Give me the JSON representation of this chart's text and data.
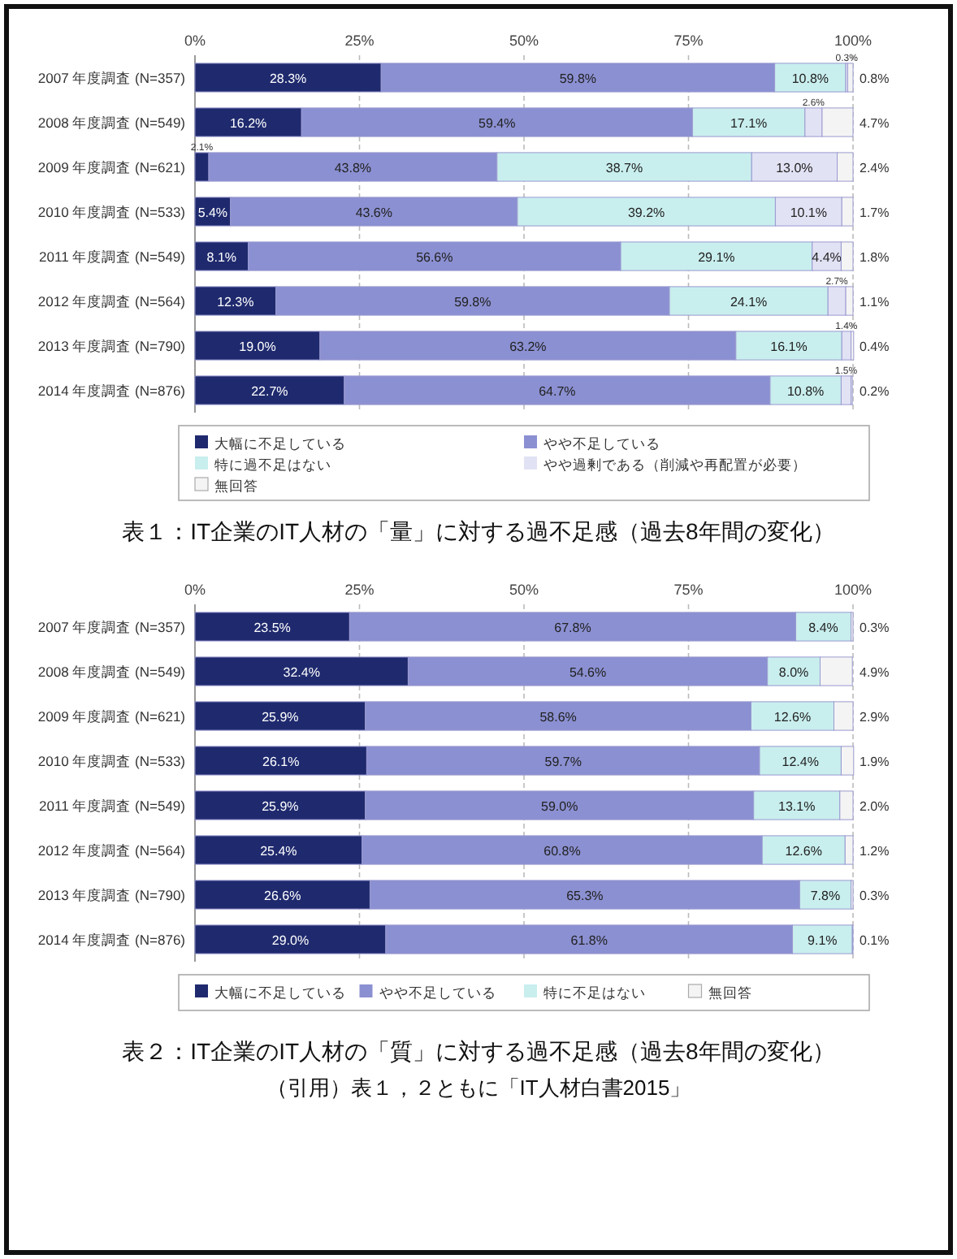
{
  "chart_data": [
    {
      "type": "bar",
      "orientation": "horizontal",
      "stacked": true,
      "title": "表１：IT企業のIT人材の「量」に対する過不足感（過去8年間の変化）",
      "categories": [
        "2007 年度調査 (N=357)",
        "2008 年度調査 (N=549)",
        "2009 年度調査 (N=621)",
        "2010 年度調査 (N=533)",
        "2011 年度調査 (N=549)",
        "2012 年度調査 (N=564)",
        "2013 年度調査 (N=790)",
        "2014 年度調査 (N=876)"
      ],
      "series": [
        {
          "name": "大幅に不足している",
          "color": "#1f2a6e",
          "values": [
            28.3,
            16.2,
            2.1,
            5.4,
            8.1,
            12.3,
            19.0,
            22.7
          ],
          "value_labels": [
            "28.3%",
            "16.2%",
            "2.1%",
            "5.4%",
            "8.1%",
            "12.3%",
            "19.0%",
            "22.7%"
          ]
        },
        {
          "name": "やや不足している",
          "color": "#8b90d2",
          "values": [
            59.8,
            59.4,
            43.8,
            43.6,
            56.6,
            59.8,
            63.2,
            64.7
          ],
          "value_labels": [
            "59.8%",
            "59.4%",
            "43.8%",
            "43.6%",
            "56.6%",
            "59.8%",
            "63.2%",
            "64.7%"
          ]
        },
        {
          "name": "特に過不足はない",
          "color": "#c9eeee",
          "values": [
            10.8,
            17.1,
            38.7,
            39.2,
            29.1,
            24.1,
            16.1,
            10.8
          ],
          "value_labels": [
            "10.8%",
            "17.1%",
            "38.7%",
            "39.2%",
            "29.1%",
            "24.1%",
            "16.1%",
            "10.8%"
          ]
        },
        {
          "name": "やや過剰である（削減や再配置が必要）",
          "color": "#e2e2f5",
          "values": [
            0.3,
            2.6,
            13.0,
            10.1,
            4.4,
            2.7,
            1.4,
            1.5
          ],
          "value_labels": [
            "0.3%",
            "2.6%",
            "13.0%",
            "10.1%",
            "4.4%",
            "2.7%",
            "1.4%",
            "1.5%"
          ]
        },
        {
          "name": "無回答",
          "color": "#f4f4f4",
          "values": [
            0.8,
            4.7,
            2.4,
            1.7,
            1.8,
            1.1,
            0.4,
            0.2
          ],
          "value_labels": [
            "0.8%",
            "4.7%",
            "2.4%",
            "1.7%",
            "1.8%",
            "1.1%",
            "0.4%",
            "0.2%"
          ]
        }
      ],
      "xlim": [
        0,
        100
      ],
      "xticks": [
        {
          "value": 0,
          "label": "0%"
        },
        {
          "value": 25,
          "label": "25%"
        },
        {
          "value": 50,
          "label": "50%"
        },
        {
          "value": 75,
          "label": "75%"
        },
        {
          "value": 100,
          "label": "100%"
        }
      ],
      "grid": "x",
      "legend": "bottom"
    },
    {
      "type": "bar",
      "orientation": "horizontal",
      "stacked": true,
      "title": "表２：IT企業のIT人材の「質」に対する過不足感（過去8年間の変化）",
      "categories": [
        "2007 年度調査 (N=357)",
        "2008 年度調査 (N=549)",
        "2009 年度調査 (N=621)",
        "2010 年度調査 (N=533)",
        "2011 年度調査 (N=549)",
        "2012 年度調査 (N=564)",
        "2013 年度調査 (N=790)",
        "2014 年度調査 (N=876)"
      ],
      "series": [
        {
          "name": "大幅に不足している",
          "color": "#1f2a6e",
          "values": [
            23.5,
            32.4,
            25.9,
            26.1,
            25.9,
            25.4,
            26.6,
            29.0
          ],
          "value_labels": [
            "23.5%",
            "32.4%",
            "25.9%",
            "26.1%",
            "25.9%",
            "25.4%",
            "26.6%",
            "29.0%"
          ]
        },
        {
          "name": "やや不足している",
          "color": "#8b90d2",
          "values": [
            67.8,
            54.6,
            58.6,
            59.7,
            59.0,
            60.8,
            65.3,
            61.8
          ],
          "value_labels": [
            "67.8%",
            "54.6%",
            "58.6%",
            "59.7%",
            "59.0%",
            "60.8%",
            "65.3%",
            "61.8%"
          ]
        },
        {
          "name": "特に不足はない",
          "color": "#c9eeee",
          "values": [
            8.4,
            8.0,
            12.6,
            12.4,
            13.1,
            12.6,
            7.8,
            9.1
          ],
          "value_labels": [
            "8.4%",
            "8.0%",
            "12.6%",
            "12.4%",
            "13.1%",
            "12.6%",
            "7.8%",
            "9.1%"
          ]
        },
        {
          "name": "無回答",
          "color": "#f4f4f4",
          "values": [
            0.3,
            4.9,
            2.9,
            1.9,
            2.0,
            1.2,
            0.3,
            0.1
          ],
          "value_labels": [
            "0.3%",
            "4.9%",
            "2.9%",
            "1.9%",
            "2.0%",
            "1.2%",
            "0.3%",
            "0.1%"
          ]
        }
      ],
      "xlim": [
        0,
        100
      ],
      "xticks": [
        {
          "value": 0,
          "label": "0%"
        },
        {
          "value": 25,
          "label": "25%"
        },
        {
          "value": 50,
          "label": "50%"
        },
        {
          "value": 75,
          "label": "75%"
        },
        {
          "value": 100,
          "label": "100%"
        }
      ],
      "grid": "x",
      "legend": "bottom",
      "annotations": [
        "（引用）表１，２ともに「IT人材白書2015」"
      ]
    }
  ]
}
